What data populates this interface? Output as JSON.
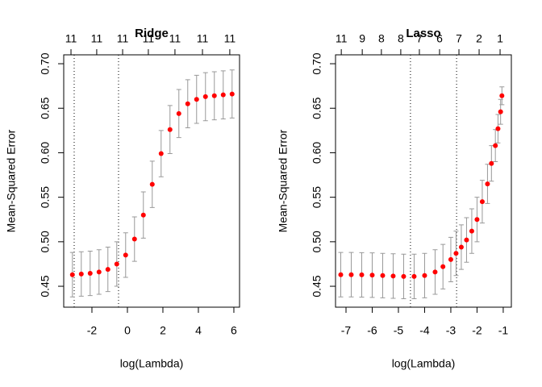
{
  "chart_data": [
    {
      "type": "scatter",
      "title": "Ridge",
      "xlabel": "log(Lambda)",
      "ylabel": "Mean-Squared Error",
      "x": [
        -3.1,
        -2.6,
        -2.1,
        -1.6,
        -1.1,
        -0.6,
        -0.1,
        0.4,
        0.9,
        1.4,
        1.9,
        2.4,
        2.9,
        3.4,
        3.9,
        4.4,
        4.9,
        5.4,
        5.9
      ],
      "values": [
        0.463,
        0.4638,
        0.4645,
        0.466,
        0.469,
        0.475,
        0.485,
        0.503,
        0.53,
        0.5645,
        0.599,
        0.626,
        0.644,
        0.655,
        0.66,
        0.663,
        0.664,
        0.665,
        0.666
      ],
      "errors": [
        0.025,
        0.025,
        0.025,
        0.025,
        0.025,
        0.025,
        0.025,
        0.025,
        0.026,
        0.026,
        0.026,
        0.027,
        0.027,
        0.027,
        0.027,
        0.027,
        0.027,
        0.027,
        0.027
      ],
      "color": "#ff0000",
      "error_color": "#999999",
      "vlines": [
        -3.0,
        -0.5
      ],
      "xlim": [
        -3.59,
        6.32
      ],
      "ylim": [
        0.4265,
        0.71
      ],
      "xticks": [
        -2,
        0,
        2,
        4,
        6
      ],
      "yticks": [
        0.45,
        {
          "value": 0.5,
          "label": "0.50"
        },
        0.55,
        {
          "value": 0.6,
          "label": "0.60"
        },
        0.65,
        {
          "value": 0.7,
          "label": "0.70"
        }
      ],
      "top_ticks": [
        {
          "value": -3.18,
          "label": "11"
        },
        {
          "value": -1.73,
          "label": "11"
        },
        {
          "value": -0.27,
          "label": "11"
        },
        {
          "value": 1.18,
          "label": "11"
        },
        {
          "value": 2.68,
          "label": "11"
        },
        {
          "value": 4.23,
          "label": "11"
        },
        {
          "value": 5.77,
          "label": "11"
        }
      ]
    },
    {
      "type": "scatter",
      "title": "Lasso",
      "xlabel": "log(Lambda)",
      "ylabel": "Mean-Squared Error",
      "x": [
        -7.2,
        -6.8,
        -6.4,
        -6.0,
        -5.6,
        -5.2,
        -4.8,
        -4.4,
        -4.0,
        -3.6,
        -3.3,
        -3.0,
        -2.8,
        -2.6,
        -2.4,
        -2.2,
        -2.0,
        -1.8,
        -1.6,
        -1.45,
        -1.3,
        -1.2,
        -1.1,
        -1.05
      ],
      "values": [
        0.463,
        0.463,
        0.4628,
        0.4625,
        0.462,
        0.4615,
        0.461,
        0.461,
        0.462,
        0.466,
        0.472,
        0.48,
        0.487,
        0.494,
        0.502,
        0.512,
        0.525,
        0.545,
        0.565,
        0.588,
        0.608,
        0.627,
        0.646,
        0.664
      ],
      "errors": [
        0.025,
        0.025,
        0.025,
        0.025,
        0.025,
        0.025,
        0.025,
        0.025,
        0.025,
        0.025,
        0.025,
        0.025,
        0.025,
        0.025,
        0.025,
        0.025,
        0.025,
        0.024,
        0.022,
        0.02,
        0.018,
        0.016,
        0.014,
        0.01
      ],
      "color": "#ff0000",
      "error_color": "#999999",
      "vlines": [
        -4.54,
        -2.78
      ],
      "xlim": [
        -7.4,
        -0.69
      ],
      "ylim": [
        0.4265,
        0.71
      ],
      "xticks": [
        -7,
        -6,
        -5,
        -4,
        -3,
        -2,
        -1
      ],
      "yticks": [
        0.45,
        {
          "value": 0.5,
          "label": "0.50"
        },
        0.55,
        {
          "value": 0.6,
          "label": "0.60"
        },
        0.65,
        {
          "value": 0.7,
          "label": "0.70"
        }
      ],
      "top_ticks": [
        {
          "value": -7.18,
          "label": "11"
        },
        {
          "value": -6.38,
          "label": "9"
        },
        {
          "value": -5.65,
          "label": "8"
        },
        {
          "value": -4.91,
          "label": "8"
        },
        {
          "value": -4.2,
          "label": "7"
        },
        {
          "value": -3.43,
          "label": "6"
        },
        {
          "value": -2.69,
          "label": "7"
        },
        {
          "value": -1.92,
          "label": "2"
        },
        {
          "value": -1.12,
          "label": "1"
        }
      ]
    }
  ]
}
